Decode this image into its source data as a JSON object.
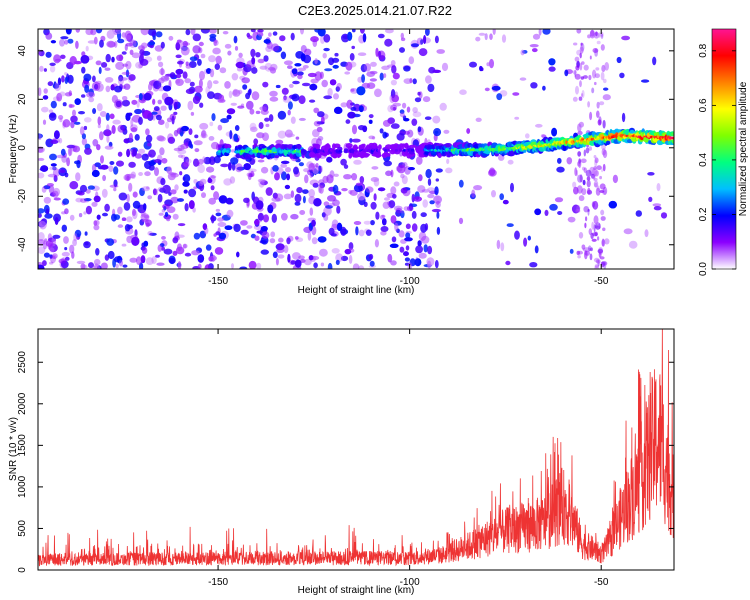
{
  "title": "C2E3.2025.014.21.07.R22",
  "chart_data": [
    {
      "type": "heatmap",
      "xlabel": "Height of straight line (km)",
      "ylabel": "Frequency (Hz)",
      "xlim": [
        -197,
        -31
      ],
      "ylim": [
        -50,
        49
      ],
      "xticks": [
        -150,
        -100,
        -50
      ],
      "yticks": [
        -40,
        -20,
        0,
        20,
        40
      ],
      "colorbar": {
        "label": "Normalized spectral amplitude",
        "range": [
          0,
          0.88
        ],
        "ticks": [
          0,
          0.2,
          0.4,
          0.6,
          0.8
        ],
        "colormap": [
          "#ffffff",
          "#8b00ff",
          "#0000ff",
          "#00bfff",
          "#00ff80",
          "#7fff00",
          "#ffff00",
          "#ff8000",
          "#ff0000",
          "#ff1493"
        ]
      },
      "ridge": [
        [
          -145,
          -1.5
        ],
        [
          -130,
          -1.5
        ],
        [
          -100,
          -1
        ],
        [
          -85,
          -1
        ],
        [
          -75,
          -0.5
        ],
        [
          -65,
          1
        ],
        [
          -55,
          3
        ],
        [
          -45,
          5
        ],
        [
          -31,
          4
        ]
      ],
      "ridge_peak_amplitude": 0.85,
      "grid": false
    },
    {
      "type": "line",
      "xlabel": "Height of straight line (km)",
      "ylabel": "SNR (10 * v/v)",
      "xlim": [
        -197,
        -31
      ],
      "ylim": [
        0,
        2900
      ],
      "xticks": [
        -150,
        -100,
        -50
      ],
      "yticks": [
        0,
        500,
        1000,
        1500,
        2000,
        2500
      ],
      "color": "#ee3333",
      "envelope": {
        "x": [
          -197,
          -150,
          -120,
          -100,
          -92,
          -85,
          -80,
          -75,
          -70,
          -65,
          -60,
          -57,
          -55,
          -52,
          -50,
          -48,
          -45,
          -40,
          -37,
          -35,
          -33,
          -31
        ],
        "y": [
          200,
          220,
          230,
          230,
          280,
          450,
          600,
          750,
          820,
          900,
          1250,
          900,
          500,
          400,
          300,
          500,
          1000,
          1700,
          2300,
          2600,
          2000,
          1300
        ]
      },
      "grid": false
    }
  ]
}
